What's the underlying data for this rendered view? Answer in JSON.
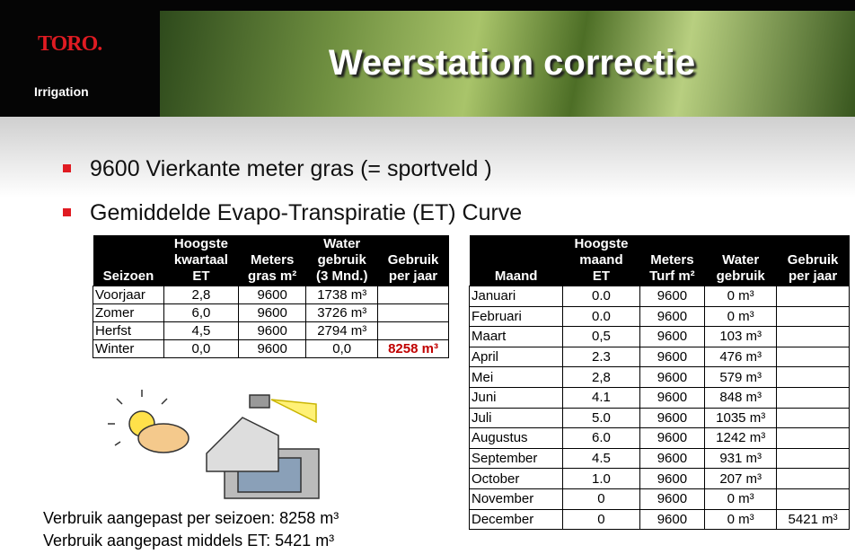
{
  "header": {
    "logo": "TORO.",
    "logo_sub": "Irrigation",
    "title": "Weerstation correctie"
  },
  "bullets": [
    "9600 Vierkante meter gras (= sportveld )",
    "Gemiddelde Evapo-Transpiratie (ET) Curve"
  ],
  "tables": [
    {
      "headers": [
        "Seizoen",
        "Hoogste\nkwartaal\nET",
        "Meters\ngras m²",
        "Water\ngebruik\n(3 Mnd.)",
        "Gebruik\nper jaar"
      ],
      "rows": [
        [
          "Voorjaar",
          "2,8",
          "9600",
          "1738 m³"
        ],
        [
          "Zomer",
          "6,0",
          "9600",
          "3726 m³"
        ],
        [
          "Herfst",
          "4,5",
          "9600",
          "2794 m³"
        ],
        [
          "Winter",
          "0,0",
          "9600",
          "0,0",
          "8258 m³"
        ]
      ]
    },
    {
      "headers": [
        "Maand",
        "Hoogste\nmaand\nET",
        "Meters\nTurf m²",
        "Water\ngebruik",
        "Gebruik\nper jaar"
      ],
      "rows": [
        [
          "Januari",
          "0.0",
          "9600",
          "0 m³"
        ],
        [
          "Februari",
          "0.0",
          "9600",
          "0 m³"
        ],
        [
          "Maart",
          "0,5",
          "9600",
          "103 m³"
        ],
        [
          "April",
          "2.3",
          "9600",
          "476 m³"
        ],
        [
          "Mei",
          "2,8",
          "9600",
          "579 m³"
        ],
        [
          "Juni",
          "4.1",
          "9600",
          "848 m³"
        ],
        [
          "Juli",
          "5.0",
          "9600",
          "1035 m³"
        ],
        [
          "Augustus",
          "6.0",
          "9600",
          "1242 m³"
        ],
        [
          "September",
          "4.5",
          "9600",
          "931 m³"
        ],
        [
          "October",
          "1.0",
          "9600",
          "207 m³"
        ],
        [
          "November",
          "0",
          "9600",
          "0 m³"
        ],
        [
          "December",
          "0",
          "9600",
          "0 m³",
          "5421 m³"
        ]
      ]
    }
  ],
  "footer": [
    "Verbruik aangepast per seizoen: 8258 m³",
    "Verbruik aangepast middels ET: 5421 m³"
  ]
}
